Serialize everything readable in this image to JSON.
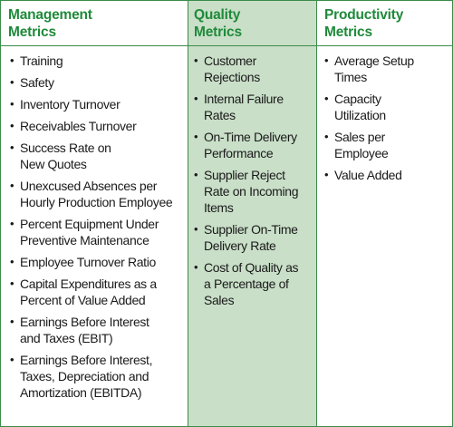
{
  "columns": [
    {
      "heading": "Management\nMetrics",
      "items": [
        "Training",
        "Safety",
        "Inventory Turnover",
        "Receivables Turnover",
        "Success Rate on\nNew Quotes",
        "Unexcused Absences per\nHourly Production Employee",
        "Percent Equipment Under\nPreventive Maintenance",
        "Employee Turnover Ratio",
        "Capital Expenditures as a\nPercent of Value Added",
        "Earnings Before Interest\nand Taxes (EBIT)",
        "Earnings Before Interest,\nTaxes, Depreciation and\nAmortization (EBITDA)"
      ]
    },
    {
      "heading": "Quality\nMetrics",
      "items": [
        "Customer\nRejections",
        "Internal Failure\nRates",
        "On-Time Delivery\nPerformance",
        "Supplier Reject\nRate on Incoming\nItems",
        "Supplier On-Time\nDelivery Rate",
        "Cost of Quality as\na Percentage of\nSales"
      ]
    },
    {
      "heading": "Productivity\nMetrics",
      "items": [
        "Average Setup\nTimes",
        "Capacity\nUtilization",
        "Sales per\nEmployee",
        "Value Added"
      ]
    }
  ],
  "colors": {
    "heading_text": "#1f8a3a",
    "border": "#3a8c4a",
    "highlight_column_bg": "#c9dfc8"
  },
  "bullet_glyph": "•"
}
